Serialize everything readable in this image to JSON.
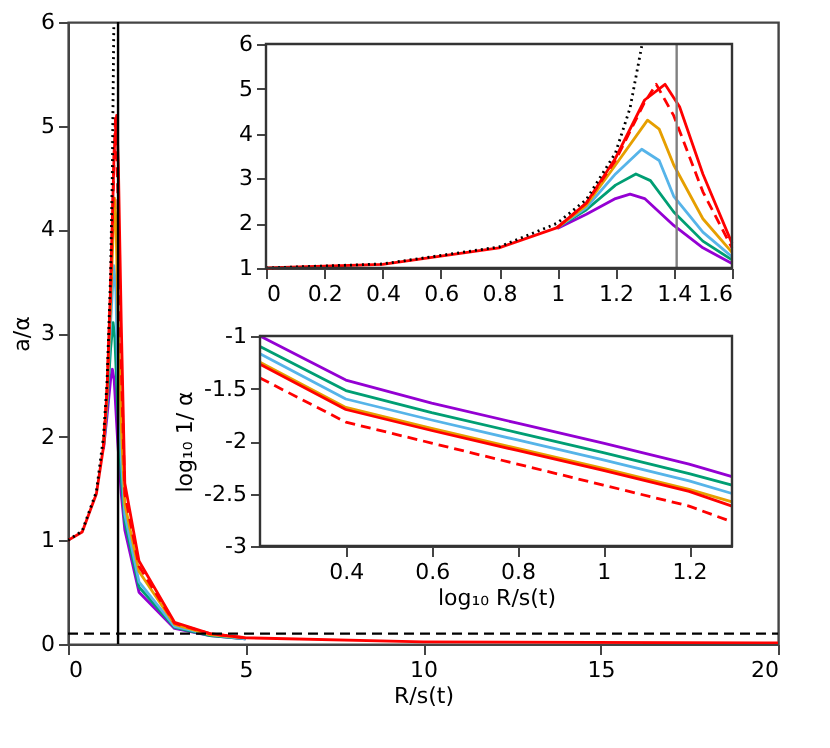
{
  "chart_data": [
    {
      "type": "line",
      "xlabel": "R/s(t)",
      "ylabel": "a/α",
      "xlim": [
        0,
        20
      ],
      "ylim": [
        0,
        6
      ],
      "xticks": [
        0,
        5,
        10,
        15,
        20
      ],
      "yticks": [
        0,
        1,
        2,
        3,
        4,
        5,
        6
      ],
      "grid": false,
      "legend": false,
      "marker": "none",
      "series": [
        {
          "color": "#9400d3",
          "x": [
            1.0,
            1.1,
            1.2,
            1.25,
            1.3,
            1.4,
            1.5,
            1.6,
            2,
            3,
            4,
            5
          ],
          "values": [
            1.88,
            2.2,
            2.55,
            2.65,
            2.55,
            1.95,
            1.45,
            1.1,
            0.5,
            0.15,
            0.08,
            0.05
          ]
        },
        {
          "color": "#009e73",
          "x": [
            1.0,
            1.1,
            1.2,
            1.27,
            1.32,
            1.4,
            1.5,
            1.6,
            2,
            3,
            4,
            5
          ],
          "values": [
            1.9,
            2.3,
            2.85,
            3.1,
            2.95,
            2.25,
            1.6,
            1.18,
            0.55,
            0.16,
            0.08,
            0.05
          ]
        },
        {
          "color": "#56b4e9",
          "x": [
            1.0,
            1.1,
            1.2,
            1.29,
            1.35,
            1.4,
            1.5,
            1.6,
            2,
            3,
            4,
            5
          ],
          "values": [
            1.9,
            2.35,
            3.1,
            3.65,
            3.4,
            2.6,
            1.8,
            1.25,
            0.6,
            0.17,
            0.09,
            0.05
          ]
        },
        {
          "color": "#e69f00",
          "x": [
            1.0,
            1.1,
            1.2,
            1.31,
            1.35,
            1.4,
            1.5,
            1.6,
            2,
            3,
            4,
            5
          ],
          "values": [
            1.9,
            2.4,
            3.3,
            4.3,
            4.1,
            3.3,
            2.1,
            1.35,
            0.7,
            0.19,
            0.09,
            0.06
          ]
        },
        {
          "color": "#ff0000",
          "x": [
            0,
            0.4,
            0.8,
            1.0,
            1.1,
            1.2,
            1.3,
            1.37,
            1.42,
            1.5,
            1.6,
            2,
            3,
            4,
            5,
            10,
            20
          ],
          "values": [
            1,
            1.08,
            1.45,
            1.9,
            2.45,
            3.45,
            4.75,
            5.1,
            4.6,
            3.1,
            1.55,
            0.8,
            0.21,
            0.1,
            0.06,
            0.02,
            0.01
          ]
        },
        {
          "color": "#ff0000",
          "line_style": "dashed",
          "x": [
            1.0,
            1.1,
            1.2,
            1.3,
            1.34,
            1.4,
            1.5,
            1.6,
            2,
            3,
            4,
            5
          ],
          "values": [
            1.9,
            2.45,
            3.4,
            4.7,
            5.1,
            4.4,
            2.7,
            1.45,
            0.75,
            0.2,
            0.1,
            0.06
          ]
        },
        {
          "color": "#000000",
          "line_style": "dotted",
          "x": [
            0,
            0.4,
            0.8,
            1.0,
            1.1,
            1.2,
            1.25,
            1.29
          ],
          "values": [
            1,
            1.09,
            1.47,
            2.0,
            2.53,
            3.57,
            4.57,
            5.95
          ]
        }
      ],
      "ref_lines": [
        {
          "axis": "x",
          "value": 1.41,
          "color": "#000000",
          "line_style": "solid"
        },
        {
          "axis": "y",
          "value": 0.1,
          "color": "#000000",
          "line_style": "dashed"
        }
      ]
    },
    {
      "type": "line",
      "xlim": [
        0,
        1.6
      ],
      "ylim": [
        1,
        6
      ],
      "xticks": [
        0,
        0.2,
        0.4,
        0.6,
        0.8,
        1,
        1.2,
        1.4,
        1.6
      ],
      "yticks": [
        1,
        2,
        3,
        4,
        5,
        6
      ],
      "grid": false,
      "legend": false,
      "marker": "none",
      "series": [
        {
          "color": "#9400d3",
          "x": [
            1.0,
            1.1,
            1.2,
            1.25,
            1.3,
            1.4,
            1.5,
            1.6
          ],
          "values": [
            1.88,
            2.2,
            2.55,
            2.65,
            2.55,
            1.95,
            1.45,
            1.1
          ]
        },
        {
          "color": "#009e73",
          "x": [
            1.0,
            1.1,
            1.2,
            1.27,
            1.32,
            1.4,
            1.5,
            1.6
          ],
          "values": [
            1.9,
            2.3,
            2.85,
            3.1,
            2.95,
            2.25,
            1.6,
            1.18
          ]
        },
        {
          "color": "#56b4e9",
          "x": [
            1.0,
            1.1,
            1.2,
            1.29,
            1.35,
            1.4,
            1.5,
            1.6
          ],
          "values": [
            1.9,
            2.35,
            3.1,
            3.65,
            3.4,
            2.6,
            1.8,
            1.25
          ]
        },
        {
          "color": "#e69f00",
          "x": [
            1.0,
            1.1,
            1.2,
            1.31,
            1.35,
            1.4,
            1.5,
            1.6
          ],
          "values": [
            1.9,
            2.4,
            3.3,
            4.3,
            4.1,
            3.3,
            2.1,
            1.35
          ]
        },
        {
          "color": "#ff0000",
          "x": [
            0,
            0.4,
            0.8,
            1.0,
            1.1,
            1.2,
            1.3,
            1.37,
            1.42,
            1.5,
            1.6
          ],
          "values": [
            1,
            1.08,
            1.45,
            1.9,
            2.45,
            3.45,
            4.75,
            5.1,
            4.6,
            3.1,
            1.55
          ]
        },
        {
          "color": "#ff0000",
          "line_style": "dashed",
          "x": [
            1.0,
            1.1,
            1.2,
            1.3,
            1.34,
            1.4,
            1.5,
            1.6
          ],
          "values": [
            1.9,
            2.45,
            3.4,
            4.7,
            5.1,
            4.4,
            2.7,
            1.45
          ]
        },
        {
          "color": "#000000",
          "line_style": "dotted",
          "x": [
            0,
            0.4,
            0.8,
            1.0,
            1.1,
            1.2,
            1.25,
            1.29
          ],
          "values": [
            1,
            1.09,
            1.47,
            2.0,
            2.53,
            3.57,
            4.57,
            5.95
          ]
        }
      ],
      "ref_lines": [
        {
          "axis": "x",
          "value": 1.41,
          "color": "#808080",
          "line_style": "solid"
        }
      ]
    },
    {
      "type": "line",
      "xlabel": "log₁₀ R/s(t)",
      "ylabel": "log₁₀ 1/ α",
      "xlim": [
        0.2,
        1.3
      ],
      "ylim": [
        -3,
        -1
      ],
      "xticks": [
        0.4,
        0.6,
        0.8,
        1,
        1.2
      ],
      "yticks": [
        -3,
        -2.5,
        -2,
        -1.5,
        -1
      ],
      "grid": false,
      "legend": false,
      "marker": "none",
      "series": [
        {
          "color": "#9400d3",
          "x": [
            0.2,
            0.4,
            0.6,
            0.8,
            1.0,
            1.2,
            1.3
          ],
          "values": [
            -1.0,
            -1.42,
            -1.64,
            -1.83,
            -2.02,
            -2.22,
            -2.34
          ]
        },
        {
          "color": "#009e73",
          "x": [
            0.2,
            0.4,
            0.6,
            0.8,
            1.0,
            1.2,
            1.3
          ],
          "values": [
            -1.1,
            -1.52,
            -1.73,
            -1.92,
            -2.11,
            -2.31,
            -2.42
          ]
        },
        {
          "color": "#56b4e9",
          "x": [
            0.2,
            0.4,
            0.6,
            0.8,
            1.0,
            1.2,
            1.3
          ],
          "values": [
            -1.17,
            -1.6,
            -1.8,
            -1.99,
            -2.18,
            -2.38,
            -2.5
          ]
        },
        {
          "color": "#e69f00",
          "x": [
            0.2,
            0.4,
            0.6,
            0.8,
            1.0,
            1.2,
            1.3
          ],
          "values": [
            -1.25,
            -1.68,
            -1.88,
            -2.07,
            -2.26,
            -2.46,
            -2.58
          ]
        },
        {
          "color": "#ff0000",
          "x": [
            0.2,
            0.4,
            0.6,
            0.8,
            1.0,
            1.2,
            1.3
          ],
          "values": [
            -1.27,
            -1.7,
            -1.9,
            -2.09,
            -2.28,
            -2.48,
            -2.62
          ]
        },
        {
          "color": "#ff0000",
          "line_style": "dashed",
          "x": [
            0.2,
            0.4,
            0.6,
            0.8,
            1.0,
            1.2,
            1.3
          ],
          "values": [
            -1.4,
            -1.82,
            -2.02,
            -2.22,
            -2.42,
            -2.62,
            -2.77
          ]
        }
      ]
    }
  ]
}
